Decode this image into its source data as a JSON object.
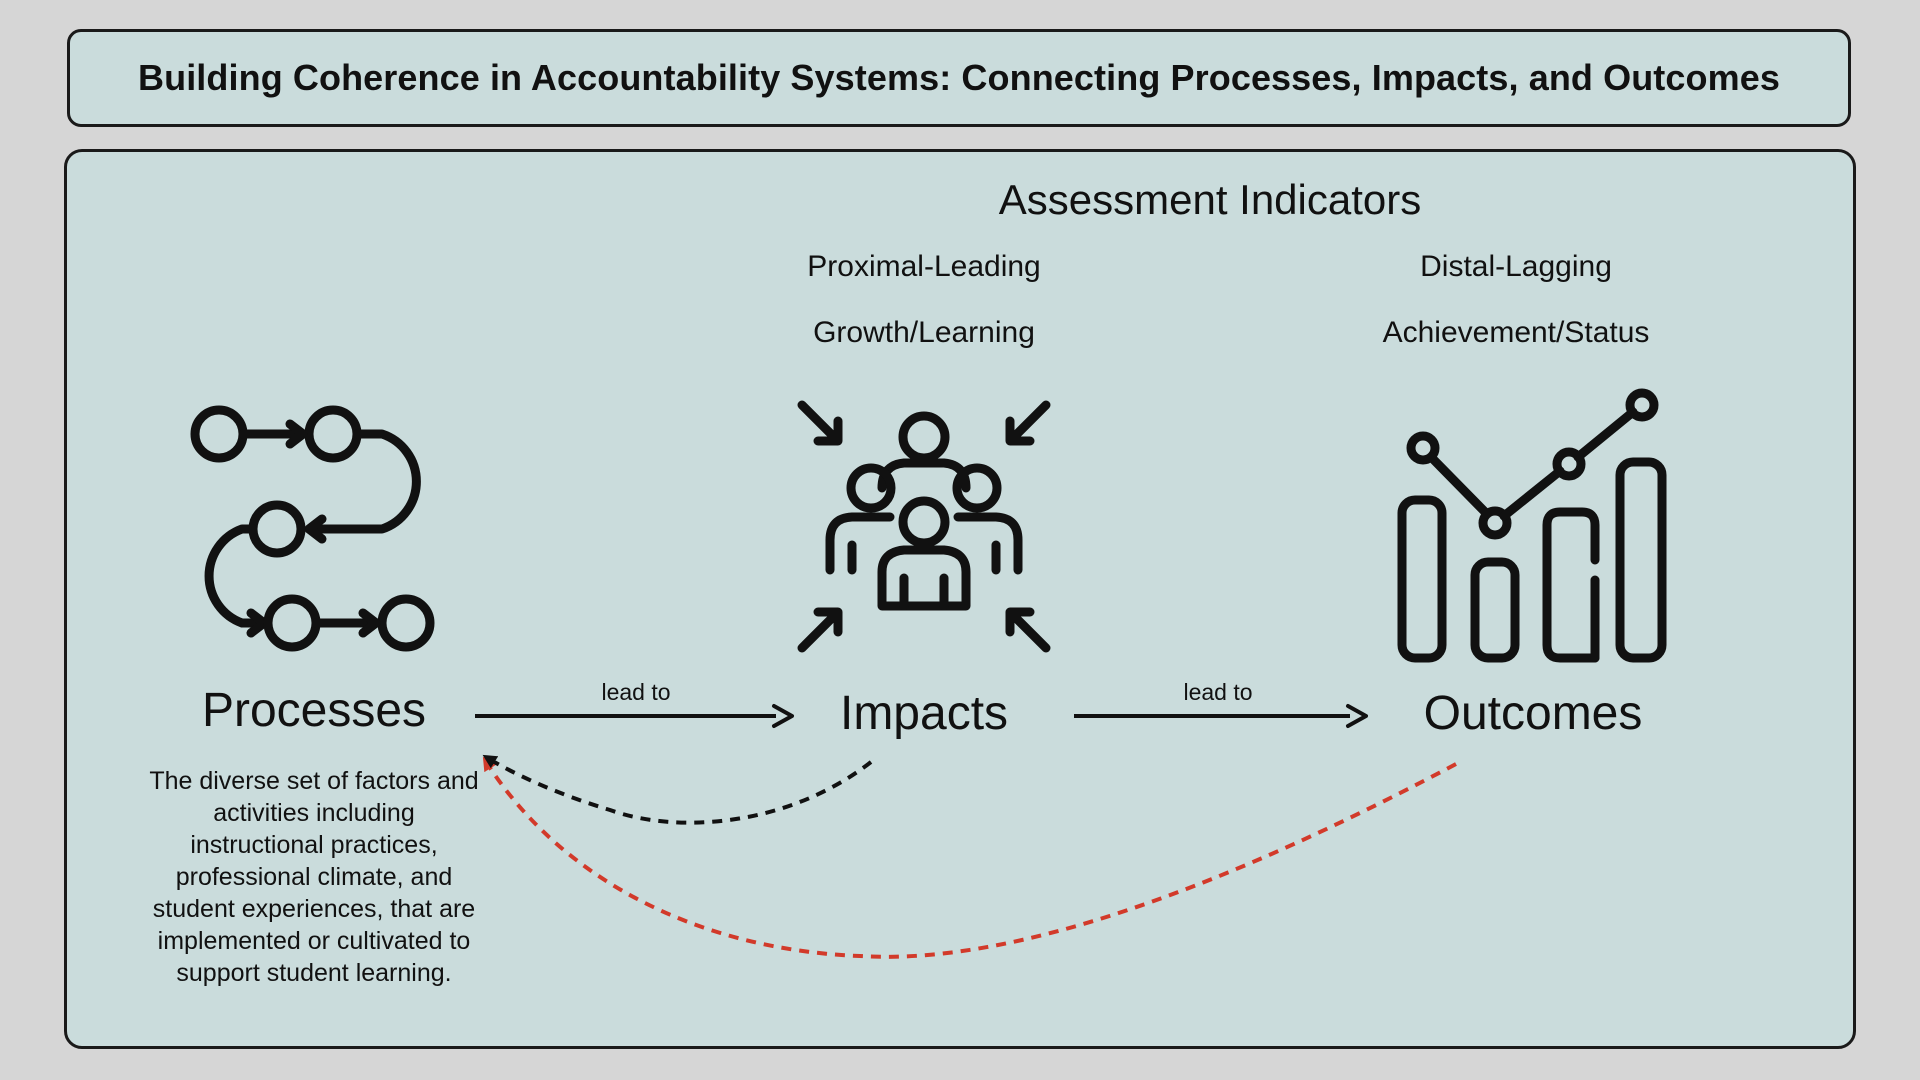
{
  "title": "Building Coherence in Accountability Systems: Connecting Processes, Impacts, and Outcomes",
  "indicators": {
    "heading": "Assessment Indicators",
    "proximal_label": "Proximal-Leading",
    "proximal_sublabel": "Growth/Learning",
    "distal_label": "Distal-Lagging",
    "distal_sublabel": "Achievement/Status"
  },
  "nodes": {
    "processes": {
      "label": "Processes",
      "icon": "workflow-icon",
      "description": "The diverse set of factors and activities including instructional practices, professional climate, and student experiences, that are implemented or cultivated to support student learning."
    },
    "impacts": {
      "label": "Impacts",
      "icon": "group-converge-icon"
    },
    "outcomes": {
      "label": "Outcomes",
      "icon": "bar-line-chart-icon"
    }
  },
  "edges": {
    "processes_to_impacts": "lead to",
    "impacts_to_outcomes": "lead to"
  },
  "colors": {
    "background": "#d6d6d6",
    "panel": "#cadcdc",
    "feedback_impacts": "#111111",
    "feedback_outcomes": "#d23a2a"
  }
}
